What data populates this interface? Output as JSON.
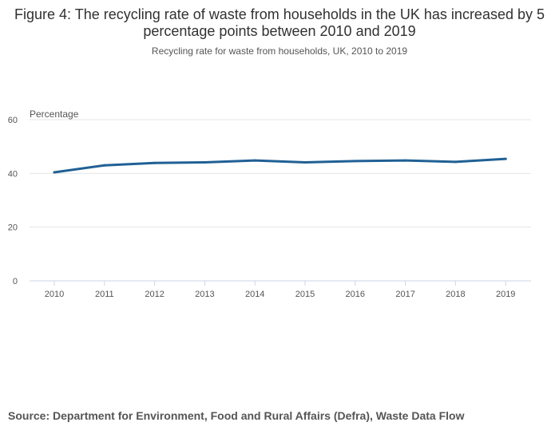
{
  "title": "Figure 4: The recycling rate of waste from households in the UK has increased by 5 percentage points between 2010 and 2019",
  "subtitle": "Recycling rate for waste from households, UK, 2010 to 2019",
  "source": "Source: Department for Environment, Food and Rural Affairs (Defra), Waste Data Flow",
  "colors": {
    "line": "#206095",
    "grid": "#e4e4e4",
    "axis": "#ccd6eb",
    "tick_text": "#555555"
  },
  "chart_data": {
    "type": "line",
    "title": "Figure 4: The recycling rate of waste from households in the UK has increased by 5 percentage points between 2010 and 2019",
    "subtitle": "Recycling rate for waste from households, UK, 2010 to 2019",
    "ylabel": "Percentage",
    "xlabel": "",
    "categories": [
      "2010",
      "2011",
      "2012",
      "2013",
      "2014",
      "2015",
      "2016",
      "2017",
      "2018",
      "2019"
    ],
    "series": [
      {
        "values": [
          40.4,
          43.0,
          43.9,
          44.1,
          44.8,
          44.1,
          44.6,
          44.8,
          44.3,
          45.4
        ]
      }
    ],
    "ylim": [
      0,
      60
    ],
    "yticks": [
      0,
      20,
      40,
      60
    ],
    "grid": true,
    "legend": "none"
  }
}
